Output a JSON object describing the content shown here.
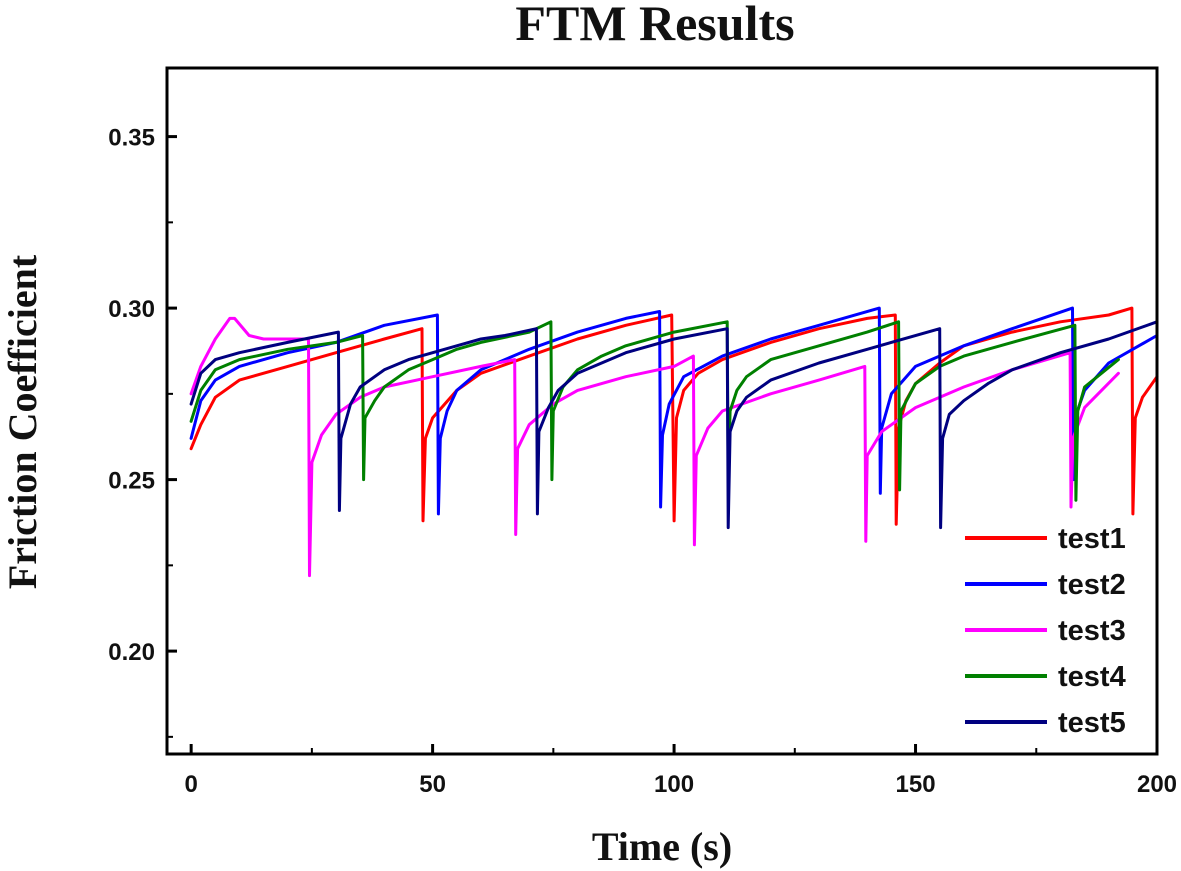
{
  "chart_data": {
    "type": "line",
    "title": "FTM Results",
    "xlabel": "Time (s)",
    "ylabel": "Friction Coefficient",
    "xlim": [
      -5,
      200
    ],
    "ylim": [
      0.17,
      0.37
    ],
    "xticks": [
      0,
      50,
      100,
      150,
      200
    ],
    "xtick_labels": [
      "0",
      "50",
      "100",
      "150",
      "200"
    ],
    "yticks": [
      0.2,
      0.25,
      0.3,
      0.35
    ],
    "ytick_labels": [
      "0.20",
      "0.25",
      "0.30",
      "0.35"
    ],
    "legend_position": "bottom-right",
    "series": [
      {
        "name": "test1",
        "color": "#ff0000",
        "x": [
          0,
          2,
          5,
          10,
          20,
          30,
          40,
          47.8,
          48,
          48.5,
          50,
          55,
          60,
          70,
          80,
          90,
          99.5,
          100,
          100.5,
          102,
          105,
          110,
          120,
          130,
          140,
          145.8,
          146,
          146.5,
          148,
          150,
          155,
          160,
          170,
          180,
          190,
          194.8,
          195,
          195.5,
          197,
          200
        ],
        "y": [
          0.259,
          0.266,
          0.274,
          0.279,
          0.283,
          0.287,
          0.291,
          0.294,
          0.238,
          0.262,
          0.268,
          0.276,
          0.281,
          0.286,
          0.291,
          0.295,
          0.298,
          0.238,
          0.268,
          0.276,
          0.281,
          0.285,
          0.29,
          0.294,
          0.297,
          0.298,
          0.237,
          0.265,
          0.273,
          0.278,
          0.284,
          0.289,
          0.293,
          0.296,
          0.298,
          0.3,
          0.24,
          0.268,
          0.274,
          0.28
        ]
      },
      {
        "name": "test2",
        "color": "#0000ff",
        "x": [
          0,
          2,
          5,
          10,
          20,
          30,
          40,
          51,
          51.2,
          51.6,
          53,
          55,
          60,
          70,
          80,
          90,
          97,
          97.2,
          97.6,
          99,
          102,
          110,
          120,
          130,
          142.5,
          142.7,
          143,
          145,
          150,
          160,
          170,
          182.5,
          182.7,
          183,
          185,
          190,
          200
        ],
        "y": [
          0.262,
          0.273,
          0.279,
          0.283,
          0.287,
          0.29,
          0.295,
          0.298,
          0.24,
          0.262,
          0.27,
          0.276,
          0.282,
          0.288,
          0.293,
          0.297,
          0.299,
          0.242,
          0.263,
          0.272,
          0.28,
          0.286,
          0.291,
          0.295,
          0.3,
          0.246,
          0.265,
          0.275,
          0.283,
          0.289,
          0.294,
          0.3,
          0.25,
          0.268,
          0.276,
          0.284,
          0.292
        ]
      },
      {
        "name": "test3",
        "color": "#ff00ff",
        "x": [
          0,
          2,
          5,
          8,
          9,
          12,
          15,
          20,
          24.3,
          24.5,
          25,
          27,
          30,
          35,
          40,
          50,
          60,
          67,
          67.2,
          67.6,
          70,
          75,
          80,
          90,
          100,
          104,
          104.2,
          104.6,
          107,
          110,
          120,
          130,
          139.5,
          139.7,
          140,
          143,
          150,
          160,
          170,
          182,
          182.2,
          182.6,
          185,
          192
        ],
        "y": [
          0.275,
          0.283,
          0.291,
          0.297,
          0.297,
          0.292,
          0.291,
          0.291,
          0.291,
          0.222,
          0.255,
          0.263,
          0.269,
          0.274,
          0.277,
          0.28,
          0.283,
          0.285,
          0.234,
          0.259,
          0.266,
          0.272,
          0.276,
          0.28,
          0.283,
          0.286,
          0.231,
          0.257,
          0.265,
          0.27,
          0.275,
          0.279,
          0.283,
          0.232,
          0.257,
          0.264,
          0.271,
          0.277,
          0.282,
          0.287,
          0.242,
          0.262,
          0.271,
          0.281
        ]
      },
      {
        "name": "test4",
        "color": "#008000",
        "x": [
          0,
          2,
          5,
          10,
          20,
          30,
          35.5,
          35.7,
          36,
          38,
          40,
          45,
          50,
          55,
          60,
          70,
          74.5,
          74.7,
          75,
          77,
          80,
          85,
          90,
          100,
          111,
          111.2,
          111.6,
          113,
          115,
          120,
          130,
          140,
          146.5,
          146.7,
          147,
          150,
          155,
          160,
          170,
          183,
          183.2,
          183.6,
          185,
          192
        ],
        "y": [
          0.267,
          0.276,
          0.282,
          0.285,
          0.288,
          0.29,
          0.292,
          0.25,
          0.268,
          0.273,
          0.277,
          0.282,
          0.285,
          0.288,
          0.29,
          0.293,
          0.296,
          0.25,
          0.27,
          0.277,
          0.282,
          0.286,
          0.289,
          0.293,
          0.296,
          0.25,
          0.27,
          0.276,
          0.28,
          0.285,
          0.289,
          0.293,
          0.296,
          0.247,
          0.27,
          0.278,
          0.283,
          0.286,
          0.29,
          0.295,
          0.244,
          0.27,
          0.277,
          0.285
        ]
      },
      {
        "name": "test5",
        "color": "#000080",
        "x": [
          0,
          2,
          5,
          10,
          20,
          30.5,
          30.7,
          31,
          33,
          35,
          40,
          45,
          50,
          55,
          60,
          65,
          71.5,
          71.7,
          72,
          74,
          76,
          80,
          90,
          100,
          111,
          111.2,
          111.6,
          113,
          115,
          120,
          130,
          140,
          155,
          155.2,
          155.6,
          157,
          160,
          165,
          170,
          180,
          190,
          200
        ],
        "y": [
          0.272,
          0.281,
          0.285,
          0.287,
          0.29,
          0.293,
          0.241,
          0.262,
          0.272,
          0.277,
          0.282,
          0.285,
          0.287,
          0.289,
          0.291,
          0.292,
          0.294,
          0.24,
          0.264,
          0.271,
          0.276,
          0.281,
          0.287,
          0.291,
          0.294,
          0.236,
          0.264,
          0.27,
          0.274,
          0.279,
          0.284,
          0.288,
          0.294,
          0.236,
          0.262,
          0.269,
          0.273,
          0.278,
          0.282,
          0.287,
          0.291,
          0.296
        ]
      }
    ]
  }
}
